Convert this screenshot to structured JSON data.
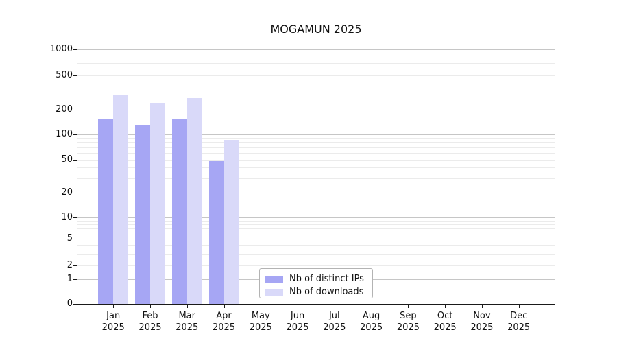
{
  "title": "MOGAMUN 2025",
  "legend": {
    "items": [
      {
        "label": "Nb of distinct IPs",
        "color": "#a6a6f4"
      },
      {
        "label": "Nb of downloads",
        "color": "#d9d9f9"
      }
    ]
  },
  "chart_data": {
    "type": "bar",
    "title": "MOGAMUN 2025",
    "year_label": "2025",
    "months": [
      "Jan",
      "Feb",
      "Mar",
      "Apr",
      "May",
      "Jun",
      "Jul",
      "Aug",
      "Sep",
      "Oct",
      "Nov",
      "Dec"
    ],
    "categories": [
      "Jan 2025",
      "Feb 2025",
      "Mar 2025",
      "Apr 2025",
      "May 2025",
      "Jun 2025",
      "Jul 2025",
      "Aug 2025",
      "Sep 2025",
      "Oct 2025",
      "Nov 2025",
      "Dec 2025"
    ],
    "series": [
      {
        "name": "Nb of distinct IPs",
        "color": "#a6a6f4",
        "values": [
          150,
          130,
          155,
          48,
          0,
          0,
          0,
          0,
          0,
          0,
          0,
          0
        ]
      },
      {
        "name": "Nb of downloads",
        "color": "#d9d9f9",
        "values": [
          300,
          240,
          270,
          85,
          0,
          0,
          0,
          0,
          0,
          0,
          0,
          0
        ]
      }
    ],
    "xlabel": "",
    "ylabel": "",
    "y_ticks": [
      0,
      1,
      2,
      5,
      10,
      20,
      50,
      100,
      200,
      500,
      1000
    ],
    "y_scale": "symlog-like (log above ~1, compressed to 0 at bottom)",
    "ylim": [
      0,
      1300
    ],
    "grid": "horizontal major and minor gridlines",
    "legend_position": "inside plot, lower center"
  },
  "colors": {
    "background": "#ffffff",
    "axis": "#1a1a1a",
    "major_grid": "#c6c6c6",
    "minor_grid": "#ebebeb",
    "text": "#111111"
  }
}
